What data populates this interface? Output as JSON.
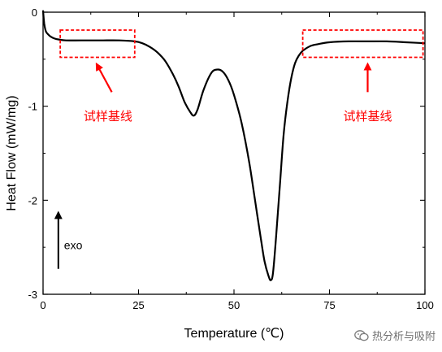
{
  "chart_data": {
    "type": "line",
    "xlabel": "Temperature (℃)",
    "ylabel": "Heat Flow (mW/mg)",
    "xlim": [
      0,
      100
    ],
    "ylim": [
      -3,
      0
    ],
    "x_ticks": [
      "0",
      "25",
      "50",
      "75",
      "100"
    ],
    "y_ticks": [
      "0",
      "-1",
      "-2",
      "-3"
    ],
    "grid": false,
    "series": [
      {
        "color": "#000000",
        "x": [
          0,
          0.3,
          0.7,
          1.2,
          2,
          3,
          4,
          6,
          10,
          15,
          20,
          24,
          26,
          28,
          30,
          32,
          34,
          35.5,
          37,
          38.5,
          39.5,
          40.5,
          42,
          44,
          45.5,
          47,
          48.5,
          50,
          52,
          54,
          55.5,
          57,
          58,
          59,
          59.6,
          60.2,
          61,
          62,
          63,
          64,
          65,
          66,
          67,
          68,
          70,
          72,
          75,
          80,
          85,
          90,
          95,
          100
        ],
        "y": [
          0.02,
          -0.12,
          -0.2,
          -0.23,
          -0.26,
          -0.28,
          -0.29,
          -0.3,
          -0.3,
          -0.3,
          -0.3,
          -0.31,
          -0.33,
          -0.37,
          -0.43,
          -0.52,
          -0.66,
          -0.79,
          -0.95,
          -1.06,
          -1.1,
          -1.03,
          -0.83,
          -0.65,
          -0.61,
          -0.63,
          -0.72,
          -0.88,
          -1.18,
          -1.6,
          -2.0,
          -2.4,
          -2.65,
          -2.8,
          -2.85,
          -2.78,
          -2.4,
          -1.85,
          -1.3,
          -0.95,
          -0.7,
          -0.54,
          -0.46,
          -0.41,
          -0.36,
          -0.34,
          -0.32,
          -0.31,
          -0.31,
          -0.31,
          -0.32,
          -0.33
        ]
      }
    ],
    "annotations": [
      {
        "text": "试样基线",
        "color": "#ff0000",
        "box_x": [
          4.5,
          24
        ],
        "box_y": [
          -0.19,
          -0.48
        ],
        "arrow_from": [
          18,
          -0.85
        ],
        "arrow_to": [
          14,
          -0.55
        ],
        "label_at": [
          17,
          -1.15
        ]
      },
      {
        "text": "试样基线",
        "color": "#ff0000",
        "box_x": [
          68,
          99.5
        ],
        "box_y": [
          -0.19,
          -0.48
        ],
        "arrow_from": [
          85,
          -0.85
        ],
        "arrow_to": [
          85,
          -0.55
        ],
        "label_at": [
          85,
          -1.15
        ]
      }
    ],
    "exo_marker": {
      "text": "exo",
      "x": 4,
      "y_from": -2.73,
      "y_to": -2.13
    }
  },
  "watermark": {
    "text": "热分析与吸附",
    "icon": "wechat-icon"
  },
  "colors": {
    "line": "#000000",
    "annotation": "#ff0000",
    "axis": "#000000"
  }
}
